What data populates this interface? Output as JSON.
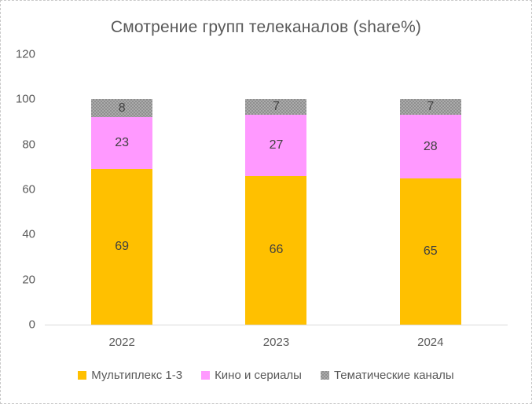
{
  "chart_data": {
    "type": "bar",
    "stacked": true,
    "title": "Смотрение групп телеканалов (share%)",
    "categories": [
      "2022",
      "2023",
      "2024"
    ],
    "series": [
      {
        "name": "Мультиплекс 1-3",
        "color": "#FFC000",
        "pattern": false,
        "values": [
          69,
          66,
          65
        ]
      },
      {
        "name": "Кино и сериалы",
        "color": "#FF99FF",
        "pattern": false,
        "values": [
          23,
          27,
          28
        ]
      },
      {
        "name": "Тематические каналы",
        "color": "#ABABAB",
        "pattern": "dotted",
        "values": [
          8,
          7,
          7
        ]
      }
    ],
    "xlabel": "",
    "ylabel": "",
    "ylim": [
      0,
      120
    ],
    "yticks": [
      0,
      20,
      40,
      60,
      80,
      100,
      120
    ],
    "grid": false,
    "legend_position": "bottom"
  },
  "colors": {
    "title_text": "#595959",
    "axis_text": "#595959",
    "value_label_text": "#404040",
    "axis_line": "#d9d9d9"
  }
}
